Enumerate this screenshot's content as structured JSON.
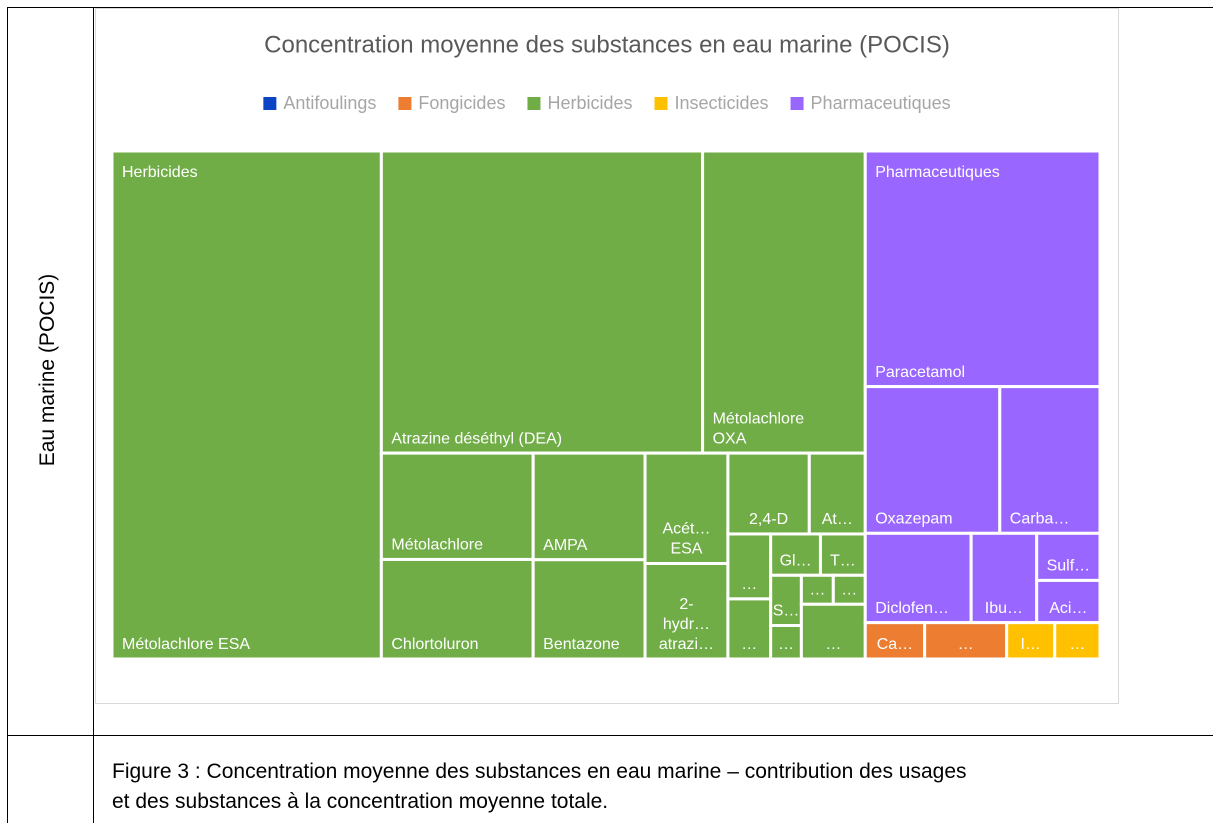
{
  "row_label": "Eau marine (POCIS)",
  "caption": [
    "Figure 3 : Concentration moyenne des substances en eau marine – contribution des usages",
    "et des substances à la concentration moyenne totale."
  ],
  "chart_data": {
    "type": "treemap",
    "title": "Concentration moyenne des substances en eau marine (POCIS)",
    "groups": [
      {
        "name": "Antifoulings",
        "color": "#0b44c4",
        "leaves": []
      },
      {
        "name": "Fongicides",
        "color": "#ed7d31",
        "leaves": [
          {
            "label": [
              "Ca…"
            ],
            "value": 2.1
          },
          {
            "label": [
              "…"
            ],
            "value": 2.9
          }
        ]
      },
      {
        "name": "Herbicides",
        "color": "#70ad47",
        "labeled": true,
        "leaves": [
          {
            "label": [
              "Métolachlore ESA"
            ],
            "value": 133.1
          },
          {
            "label": [
              "Atrazine déséthyl (DEA)"
            ],
            "value": 94.4
          },
          {
            "label": [
              "Métolachlore",
              "OXA"
            ],
            "value": 47.8
          },
          {
            "label": [
              "Métolachlore"
            ],
            "value": 15.7
          },
          {
            "label": [
              "Chlortoluron"
            ],
            "value": 14.7
          },
          {
            "label": [
              "AMPA"
            ],
            "value": 11.6
          },
          {
            "label": [
              "Bentazone"
            ],
            "value": 10.8
          },
          {
            "label": [
              "Acét…",
              "ESA"
            ],
            "value": 8.9
          },
          {
            "label": [
              "2-",
              "hydr…",
              "atrazi…"
            ],
            "value": 7.7
          },
          {
            "label": [
              "2,4-D"
            ],
            "value": 6.4
          },
          {
            "label": [
              "At…"
            ],
            "value": 4.4
          },
          {
            "label": [
              "…"
            ],
            "value": 2.7
          },
          {
            "label": [
              "…"
            ],
            "value": 2.5
          },
          {
            "label": [
              "Gl…"
            ],
            "value": 2.0
          },
          {
            "label": [
              "T…"
            ],
            "value": 1.8
          },
          {
            "label": [
              "S…"
            ],
            "value": 1.5
          },
          {
            "label": [
              "…"
            ],
            "value": 1.0
          },
          {
            "label": [
              "…"
            ],
            "value": 0.9
          },
          {
            "label": [
              "…"
            ],
            "value": 0.9
          },
          {
            "label": [
              "…"
            ],
            "value": 3.4
          }
        ]
      },
      {
        "name": "Insecticides",
        "color": "#ffc000",
        "leaves": [
          {
            "label": [
              "I…"
            ],
            "value": 1.7
          },
          {
            "label": [
              "…"
            ],
            "value": 1.6
          }
        ]
      },
      {
        "name": "Pharmaceutiques",
        "color": "#9966ff",
        "labeled": true,
        "leaves": [
          {
            "label": [
              "Paracetamol"
            ],
            "value": 53.8
          },
          {
            "label": [
              "Oxazepam"
            ],
            "value": 19.2
          },
          {
            "label": [
              "Carba…"
            ],
            "value": 14.3
          },
          {
            "label": [
              "Diclofen…"
            ],
            "value": 9.2
          },
          {
            "label": [
              "Ibu…"
            ],
            "value": 5.7
          },
          {
            "label": [
              "Sulf…"
            ],
            "value": 2.9
          },
          {
            "label": [
              "Aci…"
            ],
            "value": 2.6
          }
        ]
      }
    ]
  }
}
